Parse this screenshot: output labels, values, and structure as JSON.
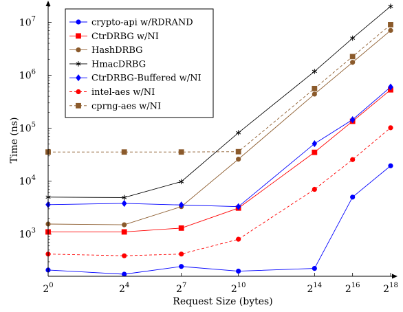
{
  "chart_data": {
    "type": "line",
    "xlabel": "Request Size (bytes)",
    "ylabel": "Time (ns)",
    "x_scale": "log2",
    "y_scale": "log10",
    "xlim_exp": [
      0,
      18
    ],
    "ylim": [
      160,
      22000000
    ],
    "x_tick_exponents": [
      0,
      4,
      7,
      10,
      14,
      16,
      18
    ],
    "x_tick_base": "2",
    "y_tick_exponents": [
      3,
      4,
      5,
      6,
      7
    ],
    "y_tick_base": "10",
    "legend_position": "top-left",
    "series": [
      {
        "name": "crypto-api w/RDRAND",
        "color": "#0000ff",
        "dashed": false,
        "marker": "circle",
        "values": [
          210,
          175,
          245,
          200,
          225,
          5000,
          19500
        ]
      },
      {
        "name": "CtrDRBG w/NI",
        "color": "#ff0000",
        "dashed": false,
        "marker": "square",
        "values": [
          1100,
          1100,
          1300,
          3100,
          35000,
          135000,
          530000
        ]
      },
      {
        "name": "HashDRBG",
        "color": "#8b5a2b",
        "dashed": false,
        "marker": "circle",
        "values": [
          1550,
          1500,
          3300,
          26000,
          440000,
          1750000,
          7000000
        ]
      },
      {
        "name": "HmacDRBG",
        "color": "#000000",
        "dashed": false,
        "marker": "star",
        "values": [
          5000,
          4900,
          9800,
          82000,
          1180000,
          5000000,
          20000000
        ]
      },
      {
        "name": "CtrDRBG-Buffered w/NI",
        "color": "#0000ff",
        "dashed": false,
        "marker": "diamond",
        "values": [
          3600,
          3800,
          3550,
          3300,
          51000,
          145000,
          600000
        ]
      },
      {
        "name": "intel-aes w/NI",
        "color": "#ff0000",
        "dashed": true,
        "marker": "circle",
        "values": [
          420,
          390,
          420,
          800,
          7000,
          25500,
          102000
        ]
      },
      {
        "name": "cprng-aes w/NI",
        "color": "#8b5a2b",
        "dashed": true,
        "marker": "square",
        "values": [
          35500,
          35500,
          35500,
          36000,
          560000,
          2250000,
          9000000
        ]
      }
    ]
  }
}
